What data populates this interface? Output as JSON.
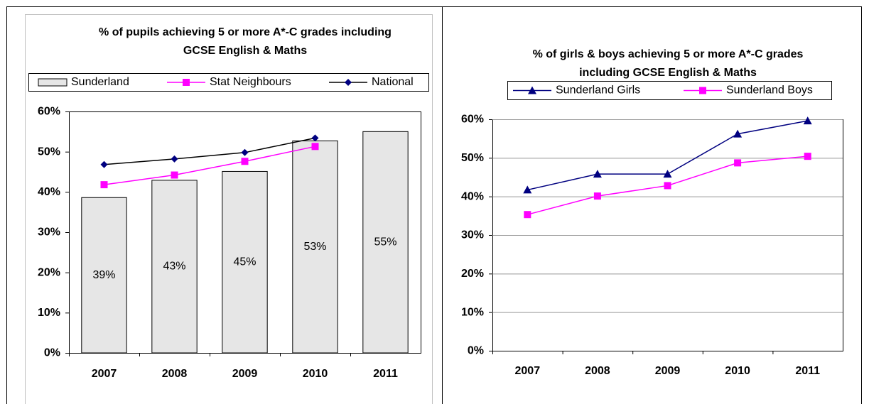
{
  "chart_data": [
    {
      "type": "bar",
      "title": "% of pupils achieving 5 or more A*-C grades including GCSE English & Maths",
      "categories": [
        "2007",
        "2008",
        "2009",
        "2010",
        "2011"
      ],
      "series": [
        {
          "name": "Sunderland",
          "mark": "bar",
          "color": "#e6e6e6",
          "values": [
            38.6,
            42.9,
            45.1,
            52.7,
            55.0
          ],
          "value_labels": [
            "39%",
            "43%",
            "45%",
            "53%",
            "55%"
          ]
        },
        {
          "name": "Stat Neighbours",
          "mark": "line",
          "marker": "square",
          "color": "#ff00ff",
          "values": [
            41.8,
            44.2,
            47.6,
            51.3,
            null
          ]
        },
        {
          "name": "National",
          "mark": "line",
          "marker": "diamond",
          "color": "#000000",
          "marker_color": "#000080",
          "values": [
            46.8,
            48.2,
            49.8,
            53.4,
            null
          ]
        }
      ],
      "ylim": [
        0,
        60
      ],
      "yticks": [
        {
          "value": 0,
          "label": "0%"
        },
        {
          "value": 10,
          "label": "10%"
        },
        {
          "value": 20,
          "label": "20%"
        },
        {
          "value": 30,
          "label": "30%"
        },
        {
          "value": 40,
          "label": "40%"
        },
        {
          "value": 50,
          "label": "50%"
        },
        {
          "value": 60,
          "label": "60%"
        }
      ],
      "grid": false
    },
    {
      "type": "line",
      "title": "% of girls & boys achieving 5 or more A*-C grades including GCSE English & Maths",
      "categories": [
        "2007",
        "2008",
        "2009",
        "2010",
        "2011"
      ],
      "series": [
        {
          "name": "Sunderland Girls",
          "mark": "line",
          "marker": "triangle",
          "color": "#000080",
          "values": [
            41.7,
            45.8,
            45.8,
            56.2,
            59.6
          ]
        },
        {
          "name": "Sunderland Boys",
          "mark": "line",
          "marker": "square",
          "color": "#ff00ff",
          "values": [
            35.3,
            40.1,
            42.8,
            48.7,
            50.4
          ]
        }
      ],
      "ylim": [
        0,
        60
      ],
      "yticks": [
        {
          "value": 0,
          "label": "0%"
        },
        {
          "value": 10,
          "label": "10%"
        },
        {
          "value": 20,
          "label": "20%"
        },
        {
          "value": 30,
          "label": "30%"
        },
        {
          "value": 40,
          "label": "40%"
        },
        {
          "value": 50,
          "label": "50%"
        },
        {
          "value": 60,
          "label": "60%"
        }
      ],
      "grid": true
    }
  ]
}
